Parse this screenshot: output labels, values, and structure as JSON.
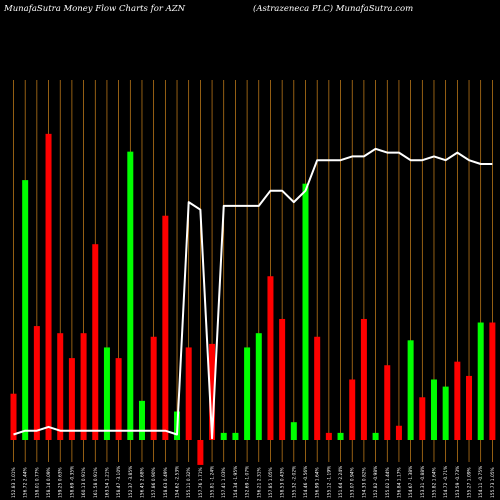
{
  "title": "MunafaSutra  Money Flow  Charts for AZN",
  "subtitle": "(Astrazeneca  PLC) MunafaSutra.com",
  "chart_data": {
    "type": "bar",
    "categories": [
      "152.83 1.01%",
      "156.72 2.44%",
      "158.01 0.77%",
      "158.14 0.09%",
      "159.25 0.63%",
      "158.69 -0.35%",
      "160.13 0.91%",
      "161.58 0.91%",
      "163.54 1.21%",
      "158.47 -3.10%",
      "152.37 -3.85%",
      "156.45 2.68%",
      "157.86 0.90%",
      "158.63 0.49%",
      "154.62 -2.53%",
      "155.11 0.32%",
      "157.76 1.71%",
      "155.81 -1.24%",
      "157.41 1.03%",
      "154.34 -1.95%",
      "152.69 -1.07%",
      "156.21 2.31%",
      "157.85 1.05%",
      "158.53 0.43%",
      "155.32 -2.02%",
      "154.46 -0.56%",
      "156.99 1.64%",
      "155.12 -1.19%",
      "151.64 -2.24%",
      "153.07 0.94%",
      "154.33 0.82%",
      "152.82 -0.98%",
      "155.02 1.44%",
      "156.84 1.17%",
      "154.67 -1.38%",
      "153.31 -0.88%",
      "155.82 1.64%",
      "154.72 -0.71%",
      "153.59 -0.73%",
      "155.27 1.09%",
      "154.11 -0.75%",
      "155.73 1.05%"
    ],
    "values": [
      13,
      73,
      32,
      86,
      30,
      23,
      30,
      55,
      26,
      23,
      81,
      11,
      29,
      63,
      8,
      26,
      -7,
      27,
      2,
      2,
      26,
      30,
      46,
      34,
      5,
      72,
      29,
      2,
      2,
      17,
      34,
      2,
      21,
      4,
      28,
      12,
      17,
      15,
      22,
      18,
      33,
      33
    ],
    "colors": [
      "red",
      "green",
      "red",
      "red",
      "red",
      "red",
      "red",
      "red",
      "green",
      "red",
      "green",
      "green",
      "red",
      "red",
      "green",
      "red",
      "red",
      "red",
      "green",
      "green",
      "green",
      "green",
      "red",
      "red",
      "green",
      "green",
      "red",
      "red",
      "green",
      "red",
      "red",
      "green",
      "red",
      "red",
      "green",
      "red",
      "green",
      "green",
      "red",
      "red",
      "green",
      "red"
    ],
    "line": [
      8,
      9,
      9,
      10,
      9,
      9,
      9,
      9,
      9,
      9,
      9,
      9,
      9,
      9,
      8,
      69,
      67,
      7,
      68,
      68,
      68,
      68,
      72,
      72,
      69,
      72,
      80,
      80,
      80,
      81,
      81,
      83,
      82,
      82,
      80,
      80,
      81,
      80,
      82,
      80,
      79,
      79
    ],
    "ylim": [
      -10,
      100
    ],
    "palette": {
      "green": "#00ff00",
      "red": "#ff0000",
      "line": "#ffffff",
      "gridline": "#d2861c",
      "background": "#000000"
    }
  }
}
